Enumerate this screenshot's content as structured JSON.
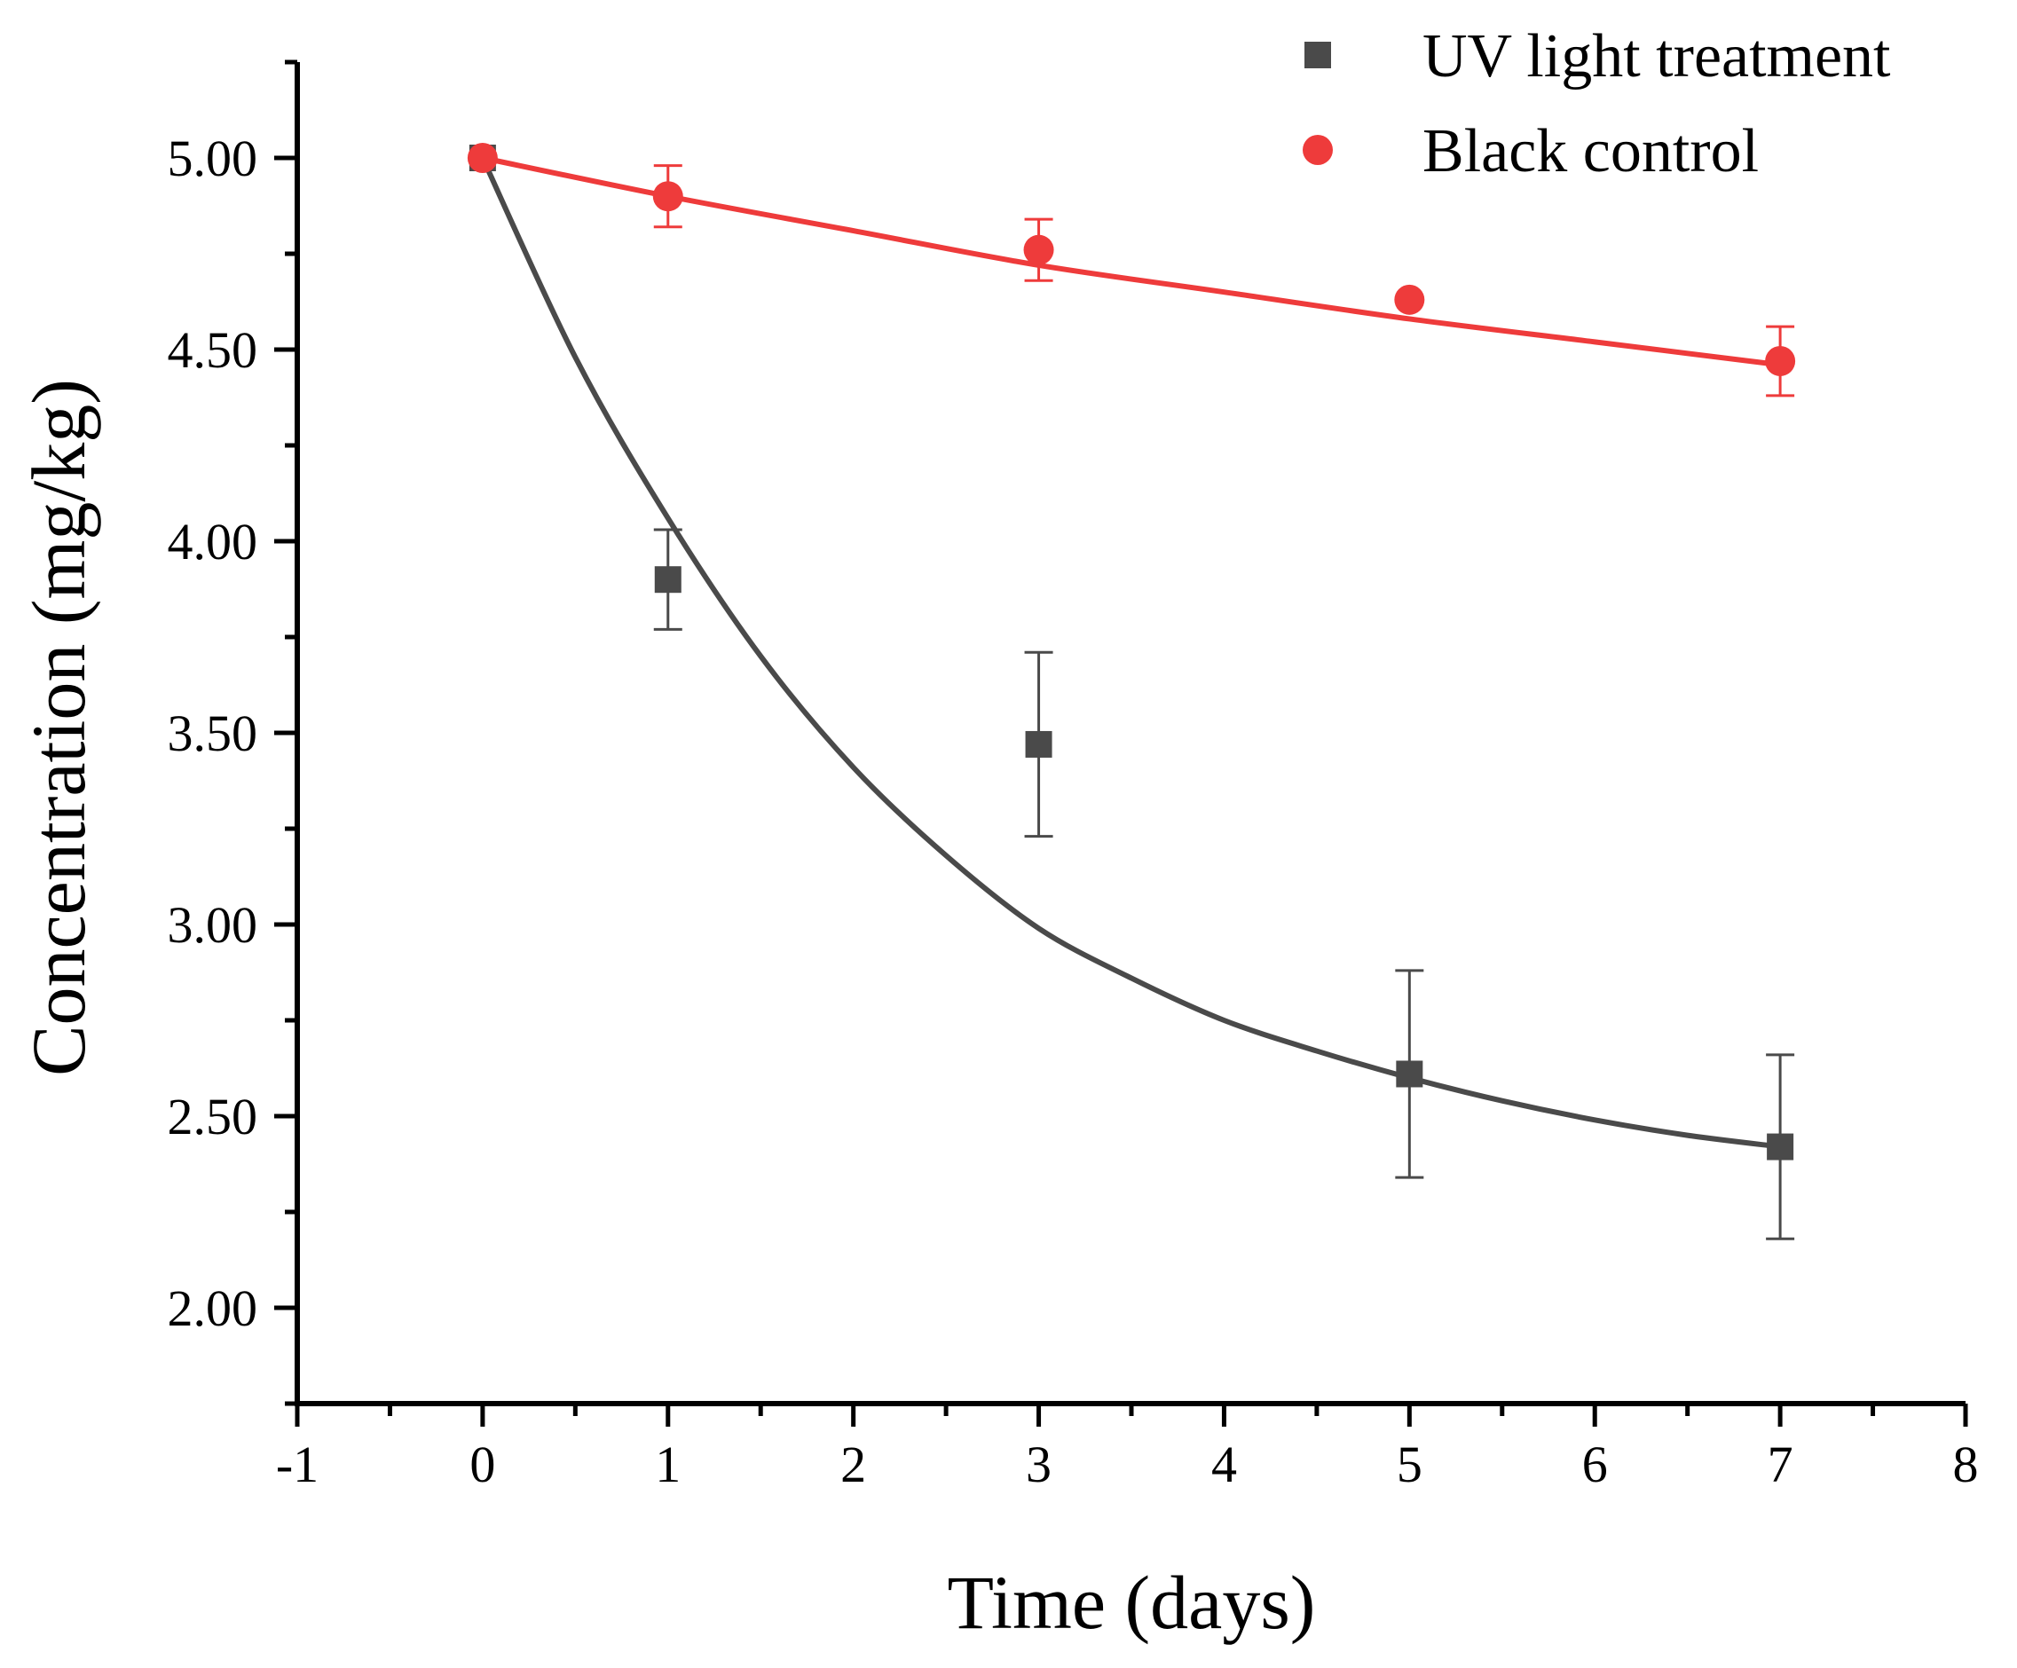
{
  "chart_data": {
    "type": "scatter",
    "xlabel": "Time (days)",
    "ylabel": "Concentration (mg/kg)",
    "xlim": [
      -1,
      8
    ],
    "ylim": [
      1.75,
      5.25
    ],
    "xticks": [
      "-1",
      "0",
      "1",
      "2",
      "3",
      "4",
      "5",
      "6",
      "7",
      "8"
    ],
    "yticks": [
      "2.00",
      "2.50",
      "3.00",
      "3.50",
      "4.00",
      "4.50",
      "5.00"
    ],
    "legend_position": "top-right",
    "grid": false,
    "series": [
      {
        "name": "UV light treatment",
        "marker": "square",
        "color": "#4a4a4a",
        "x": [
          0,
          1,
          3,
          5,
          7
        ],
        "y": [
          5.0,
          3.9,
          3.47,
          2.61,
          2.42
        ],
        "error": [
          0.0,
          0.13,
          0.24,
          0.27,
          0.24
        ],
        "fit": {
          "type": "exponential decay",
          "x": [
            0,
            0.5,
            1,
            1.5,
            2,
            2.5,
            3,
            3.5,
            4,
            4.5,
            5,
            5.5,
            6,
            6.5,
            7
          ],
          "y": [
            5.0,
            4.48,
            4.06,
            3.7,
            3.41,
            3.18,
            2.99,
            2.86,
            2.75,
            2.67,
            2.6,
            2.54,
            2.49,
            2.45,
            2.42
          ]
        }
      },
      {
        "name": "Black control",
        "marker": "circle",
        "color": "#ee3b3b",
        "x": [
          0,
          1,
          3,
          5,
          7
        ],
        "y": [
          5.0,
          4.9,
          4.76,
          4.63,
          4.47
        ],
        "error": [
          0.0,
          0.08,
          0.08,
          0.0,
          0.09
        ],
        "fit": {
          "type": "exponential decay",
          "x": [
            0,
            1,
            2,
            3,
            4,
            5,
            6,
            7
          ],
          "y": [
            5.0,
            4.9,
            4.81,
            4.72,
            4.65,
            4.58,
            4.52,
            4.46
          ]
        }
      }
    ]
  }
}
